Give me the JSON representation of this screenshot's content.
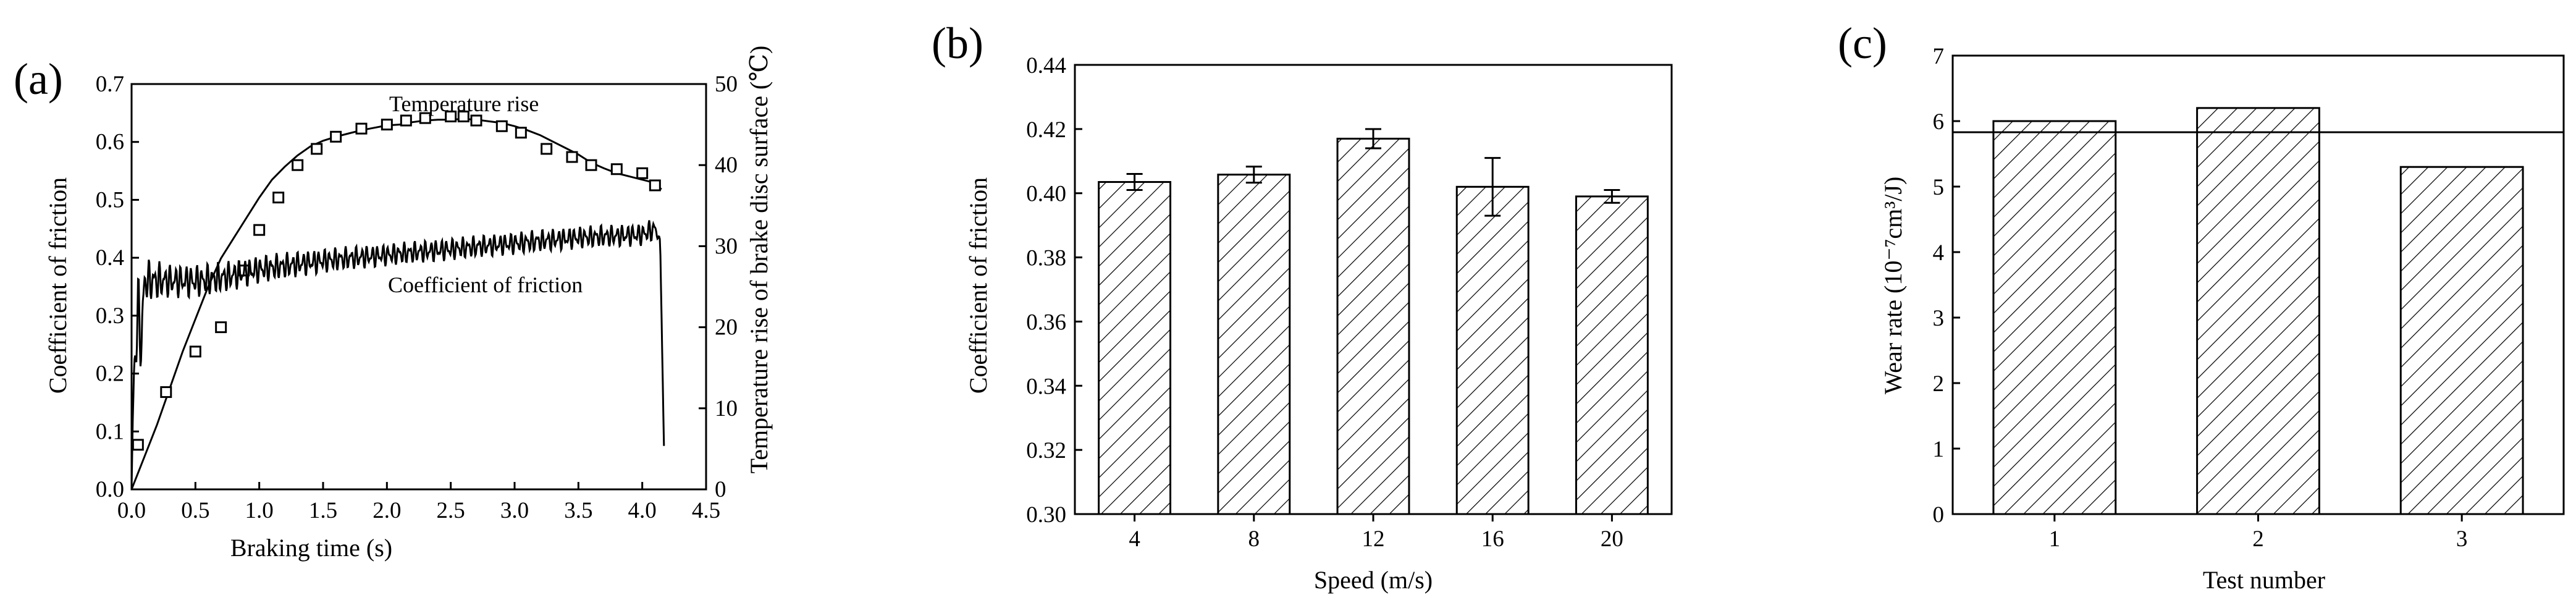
{
  "panels": [
    "(a)",
    "(b)",
    "(c)"
  ],
  "chart_data": [
    {
      "type": "line",
      "panel": "(a)",
      "xlabel": "Braking time (s)",
      "ylabel": "Coefficient of friction",
      "y2label": "Temperature rise of brake disc surface (℃)",
      "xlim": [
        0.0,
        4.5
      ],
      "xticks": [
        "0.0",
        "0.5",
        "1.0",
        "1.5",
        "2.0",
        "2.5",
        "3.0",
        "3.5",
        "4.0",
        "4.5"
      ],
      "ylim": [
        0.0,
        0.7
      ],
      "yticks": [
        "0.0",
        "0.1",
        "0.2",
        "0.3",
        "0.4",
        "0.5",
        "0.6",
        "0.7"
      ],
      "y2lim": [
        0,
        50
      ],
      "y2ticks": [
        "0",
        "10",
        "20",
        "30",
        "40",
        "50"
      ],
      "annotations": [
        "Temperature rise",
        "Coefficient of friction"
      ],
      "series": [
        {
          "name": "Temperature rise",
          "axis": "right",
          "marker": "open-square",
          "x": [
            0.0,
            0.1,
            0.2,
            0.3,
            0.4,
            0.5,
            0.6,
            0.7,
            0.8,
            0.9,
            1.0,
            1.1,
            1.2,
            1.3,
            1.4,
            1.5,
            1.6,
            1.7,
            1.8,
            1.9,
            2.0,
            2.1,
            2.2,
            2.3,
            2.4,
            2.5,
            2.6,
            2.7,
            2.8,
            2.9,
            3.0,
            3.1,
            3.2,
            3.3,
            3.4,
            3.5,
            3.6,
            3.7,
            3.8,
            3.9,
            4.0,
            4.1,
            4.15
          ],
          "values": [
            0.0,
            4.0,
            8.0,
            12.5,
            17.0,
            21.0,
            25.0,
            28.5,
            31.0,
            33.5,
            36.0,
            38.2,
            39.8,
            41.2,
            42.3,
            43.0,
            43.5,
            43.9,
            44.3,
            44.6,
            44.9,
            45.0,
            45.3,
            45.5,
            45.6,
            45.6,
            45.7,
            45.6,
            45.4,
            45.2,
            44.8,
            44.3,
            43.7,
            42.9,
            42.1,
            41.3,
            40.3,
            39.6,
            39.0,
            38.6,
            38.2,
            37.8,
            37.0
          ],
          "marker_x": [
            0.05,
            0.27,
            0.5,
            0.7,
            0.88,
            1.0,
            1.15,
            1.3,
            1.45,
            1.6,
            1.8,
            2.0,
            2.15,
            2.3,
            2.5,
            2.6,
            2.7,
            2.9,
            3.05,
            3.25,
            3.45,
            3.6,
            3.8,
            4.0,
            4.1
          ],
          "marker_values": [
            5.5,
            12.0,
            17.0,
            20.0,
            27.0,
            32.0,
            36.0,
            40.0,
            42.0,
            43.5,
            44.5,
            45.0,
            45.5,
            45.8,
            46.0,
            46.0,
            45.5,
            44.8,
            44.0,
            42.0,
            41.0,
            40.0,
            39.5,
            39.0,
            37.5
          ]
        },
        {
          "name": "Coefficient of friction",
          "axis": "left",
          "style": "oscillating",
          "x": [
            0.0,
            0.02,
            0.05,
            0.08,
            0.1,
            0.2,
            0.3,
            0.5,
            0.7,
            1.0,
            1.5,
            2.0,
            2.5,
            3.0,
            3.5,
            4.0,
            4.1,
            4.14,
            4.17
          ],
          "values": [
            0.0,
            0.22,
            0.3,
            0.26,
            0.36,
            0.36,
            0.36,
            0.36,
            0.365,
            0.38,
            0.395,
            0.405,
            0.415,
            0.425,
            0.435,
            0.44,
            0.45,
            0.43,
            0.075
          ],
          "amplitude": [
            0.0,
            0.08,
            0.08,
            0.06,
            0.04,
            0.035,
            0.03,
            0.03,
            0.028,
            0.025,
            0.022,
            0.02,
            0.02,
            0.02,
            0.02,
            0.02,
            0.02,
            0.0,
            0.0
          ]
        }
      ]
    },
    {
      "type": "bar",
      "panel": "(b)",
      "xlabel": "Speed (m/s)",
      "ylabel": "Coefficient of friction",
      "categories": [
        "4",
        "8",
        "12",
        "16",
        "20"
      ],
      "values": [
        0.4035,
        0.4058,
        0.417,
        0.402,
        0.399
      ],
      "errors": [
        0.0025,
        0.0025,
        0.003,
        0.009,
        0.002
      ],
      "ylim": [
        0.3,
        0.44
      ],
      "yticks": [
        "0.30",
        "0.32",
        "0.34",
        "0.36",
        "0.38",
        "0.40",
        "0.42",
        "0.44"
      ]
    },
    {
      "type": "bar",
      "panel": "(c)",
      "xlabel": "Test number",
      "ylabel": "Wear rate (10⁻⁷cm³/J)",
      "categories": [
        "1",
        "2",
        "3"
      ],
      "values": [
        6.0,
        6.2,
        5.3
      ],
      "mean_line": 5.83,
      "ylim": [
        0,
        7
      ],
      "yticks": [
        "0",
        "1",
        "2",
        "3",
        "4",
        "5",
        "6",
        "7"
      ]
    }
  ]
}
